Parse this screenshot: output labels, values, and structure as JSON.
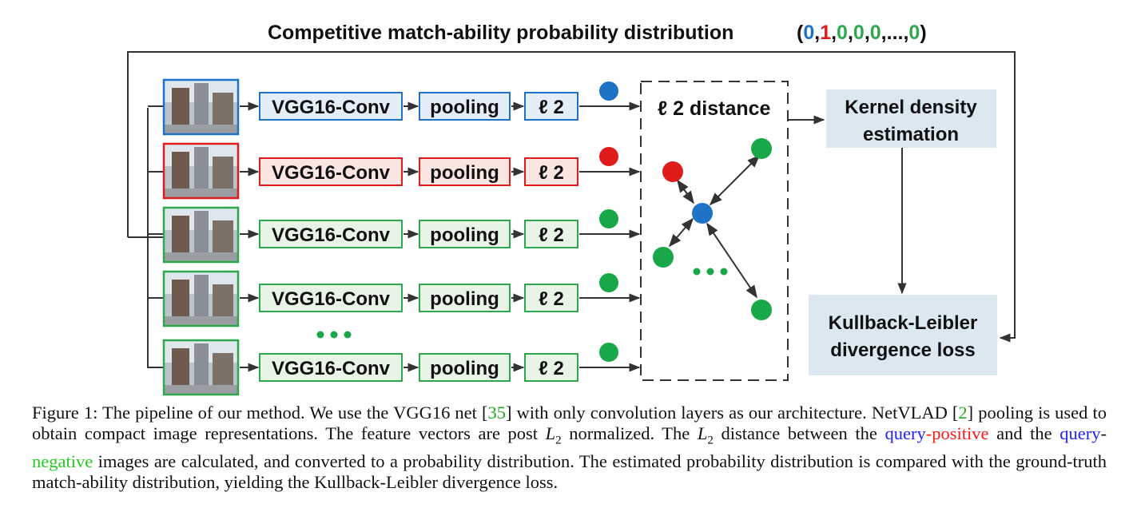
{
  "title": "Competitive match-ability probability distribution",
  "gt_vector": {
    "open": "(",
    "close": ")",
    "entries": [
      {
        "text": "0",
        "color": "#1f73c7"
      },
      {
        "text": "1",
        "color": "#e01b1b"
      },
      {
        "text": "0",
        "color": "#2ea84e"
      },
      {
        "text": "0",
        "color": "#2ea84e"
      },
      {
        "text": "0",
        "color": "#2ea84e"
      },
      {
        "text": "...",
        "color": "#111111"
      },
      {
        "text": "0",
        "color": "#2ea84e"
      }
    ]
  },
  "branches": [
    {
      "role": "query",
      "conv": "VGG16-Conv",
      "pool": "pooling",
      "norm": "ℓ 2",
      "color": "#1f73c7",
      "fill": "#e4eef8"
    },
    {
      "role": "positive",
      "conv": "VGG16-Conv",
      "pool": "pooling",
      "norm": "ℓ 2",
      "color": "#e01b1b",
      "fill": "#fbe6e1"
    },
    {
      "role": "negative",
      "conv": "VGG16-Conv",
      "pool": "pooling",
      "norm": "ℓ 2",
      "color": "#2ea84e",
      "fill": "#e8f4e6"
    },
    {
      "role": "negative",
      "conv": "VGG16-Conv",
      "pool": "pooling",
      "norm": "ℓ 2",
      "color": "#2ea84e",
      "fill": "#e8f4e6"
    },
    {
      "role": "negative",
      "conv": "VGG16-Conv",
      "pool": "pooling",
      "norm": "ℓ 2",
      "color": "#2ea84e",
      "fill": "#e8f4e6"
    }
  ],
  "ellipsis_dots": "...",
  "distance_label": "ℓ 2 distance",
  "kde_label": [
    "Kernel density",
    "estimation"
  ],
  "kl_label": [
    "Kullback-Leibler",
    "divergence loss"
  ],
  "colors": {
    "query": "#1f73c7",
    "positive": "#e01b1b",
    "negative": "#18a848",
    "box_fill": "#dbe8ef",
    "arrow": "#333333"
  },
  "caption": {
    "label": "Figure 1:",
    "s1": "The pipeline of our method. We use the VGG16 net [",
    "ref1": "35",
    "s2": "] with only convolution layers as our architecture. NetVLAD [",
    "ref2": "2",
    "s3": "] pooling is used to obtain compact image representations. The feature vectors are post ",
    "l2a": "L",
    "sub": "2",
    "s4": " normalized. The ",
    "l2b": "L",
    "s5": " distance between the ",
    "query1": "query",
    "dash1": "-",
    "positive": "positive",
    "s6": " and the ",
    "query2": "query",
    "dash2": "-",
    "negative": "negative",
    "s7": " images are calculated, and converted to a probability distribution. The estimated probability distribution is compared with the ground-truth match-ability distribution, yielding the Kullback-Leibler divergence loss."
  }
}
